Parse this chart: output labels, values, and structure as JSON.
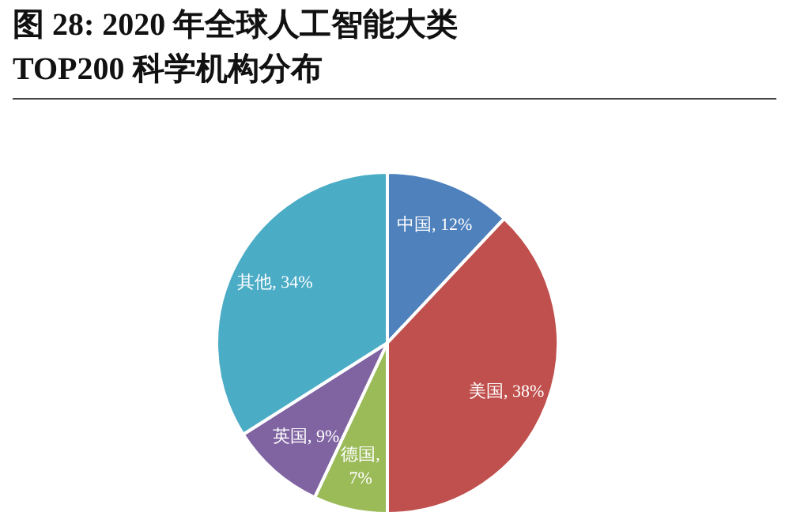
{
  "chart_data": {
    "type": "pie",
    "title": "图 28: 2020 年全球人工智能大类 TOP200 科学机构分布",
    "categories": [
      "中国",
      "美国",
      "德国",
      "英国",
      "其他"
    ],
    "values": [
      12,
      38,
      7,
      9,
      34
    ],
    "value_labels": [
      ", 12%",
      ", 38%",
      ", 7%",
      ", 9%",
      ", 34%"
    ],
    "colors": [
      "#4f81bd",
      "#c0504d",
      "#9bbb59",
      "#8064a2",
      "#4bacc6"
    ]
  }
}
